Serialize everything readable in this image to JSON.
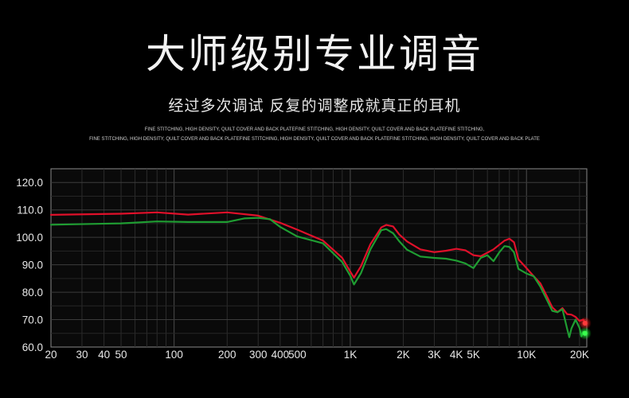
{
  "header": {
    "title": "大师级别专业调音",
    "subtitle": "经过多次调试 反复的调整成就真正的耳机",
    "fine_print_1": "FINE STITCHING, HIGH DENSITY, QUILT COVER AND BACK PLATEFINE STITCHING, HIGH DENSITY, QUILT COVER AND BACK PLATEFINE STITCHING,",
    "fine_print_2": "FINE STITCHING, HIGH DENSITY, QUILT COVER AND BACK PLATEFINE STITCHING, HIGH DENSITY, QUILT COVER AND BACK PLATEFINE STITCHING, HIGH DENSITY, QUILT COVER AND BACK PLATE"
  },
  "chart_data": {
    "type": "line",
    "title": "",
    "xlabel": "",
    "ylabel": "",
    "x_scale": "log",
    "xlim": [
      20,
      22000
    ],
    "ylim": [
      60,
      125
    ],
    "grid": true,
    "x_ticks": [
      {
        "value": 20,
        "label": "20"
      },
      {
        "value": 30,
        "label": "30"
      },
      {
        "value": 40,
        "label": "40"
      },
      {
        "value": 50,
        "label": "50"
      },
      {
        "value": 100,
        "label": "100"
      },
      {
        "value": 200,
        "label": "200"
      },
      {
        "value": 300,
        "label": "300"
      },
      {
        "value": 400,
        "label": "400"
      },
      {
        "value": 500,
        "label": "500"
      },
      {
        "value": 1000,
        "label": "1K"
      },
      {
        "value": 2000,
        "label": "2K"
      },
      {
        "value": 3000,
        "label": "3K"
      },
      {
        "value": 4000,
        "label": "4K"
      },
      {
        "value": 5000,
        "label": "5K"
      },
      {
        "value": 10000,
        "label": "10K"
      },
      {
        "value": 20000,
        "label": "20K"
      }
    ],
    "y_ticks": [
      {
        "value": 60,
        "label": "60.0"
      },
      {
        "value": 70,
        "label": "70.0"
      },
      {
        "value": 80,
        "label": "80.0"
      },
      {
        "value": 90,
        "label": "90.0"
      },
      {
        "value": 100,
        "label": "100.0"
      },
      {
        "value": 110,
        "label": "110.0"
      },
      {
        "value": 120,
        "label": "120.0"
      }
    ],
    "series": [
      {
        "color": "#e0102a",
        "points": [
          [
            20,
            108.2
          ],
          [
            50,
            108.6
          ],
          [
            80,
            109.1
          ],
          [
            120,
            108.3
          ],
          [
            200,
            109.1
          ],
          [
            300,
            107.9
          ],
          [
            400,
            105.3
          ],
          [
            500,
            102.8
          ],
          [
            700,
            98.8
          ],
          [
            900,
            92.5
          ],
          [
            1000,
            87.5
          ],
          [
            1050,
            85.3
          ],
          [
            1150,
            89.5
          ],
          [
            1300,
            97.5
          ],
          [
            1500,
            103.6
          ],
          [
            1600,
            104.5
          ],
          [
            1750,
            104
          ],
          [
            1900,
            101
          ],
          [
            2100,
            98.5
          ],
          [
            2500,
            95.6
          ],
          [
            3000,
            94.6
          ],
          [
            3500,
            95.1
          ],
          [
            4000,
            95.8
          ],
          [
            4500,
            95.3
          ],
          [
            5000,
            93.5
          ],
          [
            5500,
            93.1
          ],
          [
            6500,
            95.6
          ],
          [
            7500,
            98.8
          ],
          [
            8000,
            99.5
          ],
          [
            8500,
            98.2
          ],
          [
            9000,
            92
          ],
          [
            10000,
            88.8
          ],
          [
            11000,
            85.8
          ],
          [
            12000,
            83.2
          ],
          [
            13000,
            78.8
          ],
          [
            14000,
            74.5
          ],
          [
            15000,
            72.7
          ],
          [
            16000,
            74.2
          ],
          [
            17000,
            72
          ],
          [
            18000,
            71.8
          ],
          [
            19000,
            71
          ],
          [
            20000,
            69.5
          ],
          [
            21000,
            70
          ],
          [
            21500,
            68.7
          ]
        ]
      },
      {
        "color": "#1f9d32",
        "points": [
          [
            20,
            104.6
          ],
          [
            50,
            105.1
          ],
          [
            80,
            105.8
          ],
          [
            120,
            105.6
          ],
          [
            200,
            105.6
          ],
          [
            250,
            106.9
          ],
          [
            300,
            107.1
          ],
          [
            350,
            106.6
          ],
          [
            400,
            103.8
          ],
          [
            500,
            100.3
          ],
          [
            700,
            97.8
          ],
          [
            900,
            91
          ],
          [
            1000,
            86
          ],
          [
            1050,
            82.8
          ],
          [
            1150,
            87
          ],
          [
            1300,
            95.6
          ],
          [
            1500,
            102.6
          ],
          [
            1600,
            103
          ],
          [
            1750,
            101.5
          ],
          [
            1900,
            98.5
          ],
          [
            2100,
            95.5
          ],
          [
            2500,
            93
          ],
          [
            3000,
            92.5
          ],
          [
            3500,
            92.2
          ],
          [
            4000,
            91.5
          ],
          [
            4500,
            90.5
          ],
          [
            5000,
            88.8
          ],
          [
            5500,
            92.5
          ],
          [
            6000,
            93.5
          ],
          [
            6500,
            91.3
          ],
          [
            7000,
            94.5
          ],
          [
            7500,
            96.8
          ],
          [
            8000,
            96.5
          ],
          [
            8500,
            94.5
          ],
          [
            9000,
            88.5
          ],
          [
            10000,
            86.8
          ],
          [
            11000,
            85.8
          ],
          [
            12000,
            82
          ],
          [
            13000,
            77.5
          ],
          [
            14000,
            73.2
          ],
          [
            15000,
            72.7
          ],
          [
            16000,
            73.8
          ],
          [
            17000,
            66.8
          ],
          [
            17500,
            63.6
          ],
          [
            18000,
            66.8
          ],
          [
            19000,
            70
          ],
          [
            20000,
            67
          ],
          [
            20500,
            63.9
          ],
          [
            21000,
            65.5
          ],
          [
            21500,
            65
          ]
        ]
      }
    ]
  }
}
